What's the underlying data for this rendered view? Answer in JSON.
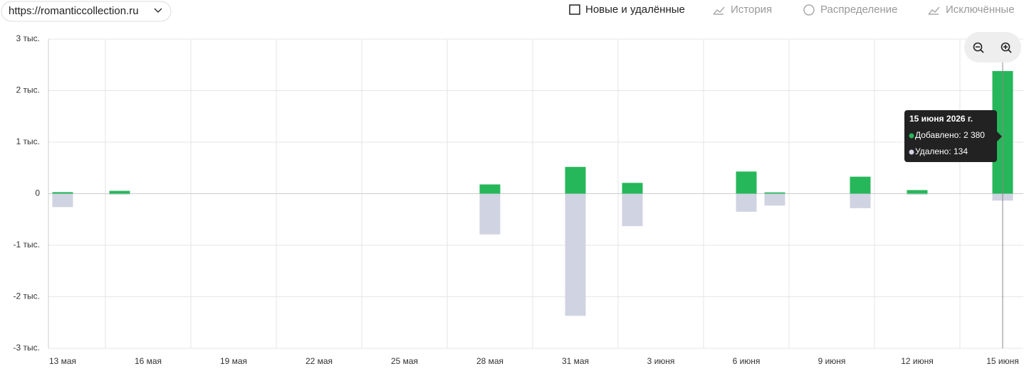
{
  "header": {
    "url": "https://romanticcollection.ru",
    "tabs": [
      "Новые и удалённые",
      "История",
      "Распределение",
      "Исключённые"
    ]
  },
  "chart_data": {
    "type": "bar",
    "categories": [
      "13 мая",
      null,
      null,
      "16 мая",
      null,
      null,
      "19 мая",
      null,
      null,
      "22 мая",
      null,
      null,
      "25 мая",
      null,
      null,
      "28 мая",
      null,
      null,
      "31 мая",
      null,
      null,
      "3 июня",
      null,
      null,
      "6 июня",
      null,
      null,
      "9 июня",
      null,
      null,
      "12 июня",
      null,
      null,
      "15 июня"
    ],
    "series": [
      {
        "name": "Добавлено",
        "color": "#26b75a",
        "values": [
          30,
          0,
          55,
          0,
          0,
          0,
          0,
          0,
          0,
          0,
          0,
          0,
          0,
          0,
          0,
          180,
          0,
          0,
          520,
          0,
          210,
          0,
          0,
          0,
          430,
          25,
          0,
          0,
          330,
          0,
          70,
          0,
          0,
          2380
        ]
      },
      {
        "name": "Удалено",
        "color": "#d0d3e1",
        "values": [
          -260,
          0,
          -20,
          0,
          0,
          0,
          0,
          0,
          0,
          0,
          0,
          0,
          0,
          0,
          0,
          -790,
          0,
          0,
          -2370,
          0,
          -630,
          0,
          0,
          0,
          -350,
          -230,
          0,
          0,
          -280,
          0,
          -20,
          0,
          0,
          -134
        ]
      }
    ],
    "ylim": [
      -3000,
      3000
    ],
    "yticks": [
      {
        "value": -3000,
        "label": "-3 тыс."
      },
      {
        "value": -2000,
        "label": "-2 тыс."
      },
      {
        "value": -1000,
        "label": "-1 тыс."
      },
      0,
      {
        "value": 1000,
        "label": "1 тыс."
      },
      {
        "value": 2000,
        "label": "2 тыс."
      },
      {
        "value": 3000,
        "label": "3 тыс."
      }
    ],
    "grid": true,
    "tooltip": {
      "title": "15 июня 2026 г.",
      "lines": [
        "Добавлено: 2 380",
        "Удалено: 134"
      ]
    }
  }
}
